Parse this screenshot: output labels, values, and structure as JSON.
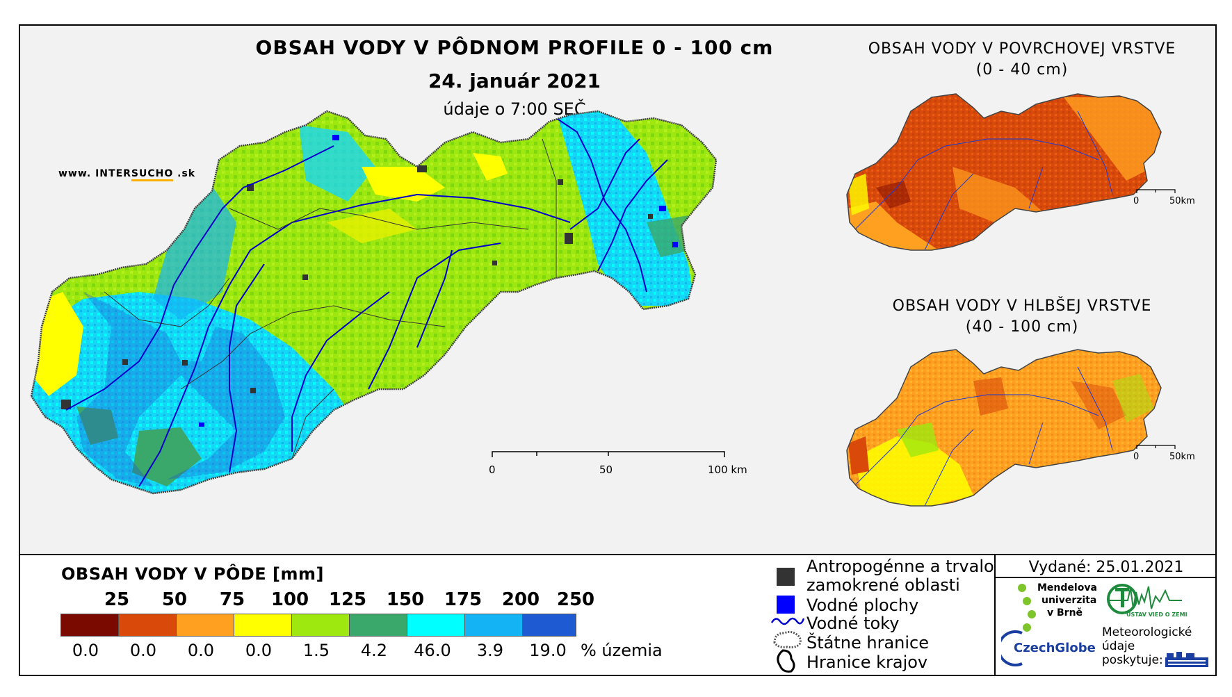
{
  "main_map": {
    "title": "OBSAH VODY V PÔDNOM PROFILE 0 - 100 cm",
    "date": "24. január 2021",
    "time": "údaje o 7:00 SEČ",
    "website_prefix": "www. INTER",
    "website_accent": "SUCHO",
    "website_suffix": " .sk",
    "scale_labels": [
      "0",
      "50",
      "100 km"
    ]
  },
  "surface_map": {
    "title_line1": "OBSAH VODY V POVRCHOVEJ VRSTVE",
    "title_line2": "(0 - 40 cm)",
    "scale_labels": [
      "0",
      "50km"
    ]
  },
  "deep_map": {
    "title_line1": "OBSAH VODY V HLBŠEJ VRSTVE",
    "title_line2": "(40 - 100 cm)",
    "scale_labels": [
      "0",
      "50km"
    ]
  },
  "legend": {
    "title": "OBSAH VODY V PÔDE [mm]",
    "thresholds": [
      "25",
      "50",
      "75",
      "100",
      "125",
      "150",
      "175",
      "200",
      "250"
    ],
    "classes": [
      {
        "color": "#7a0a00",
        "percent": "0.0"
      },
      {
        "color": "#d94a0a",
        "percent": "0.0"
      },
      {
        "color": "#ffa020",
        "percent": "0.0"
      },
      {
        "color": "#ffff00",
        "percent": "0.0"
      },
      {
        "color": "#9ee80f",
        "percent": "1.5"
      },
      {
        "color": "#3aa86a",
        "percent": "4.2"
      },
      {
        "color": "#00ffff",
        "percent": "46.0"
      },
      {
        "color": "#14b4f4",
        "percent": "3.9"
      },
      {
        "color": "#1e5ad2",
        "percent": "19.0"
      }
    ],
    "percent_unit": "% územia"
  },
  "symbols": {
    "anthropogenic_line1": "Antropogénne a trvalo",
    "anthropogenic_line2": "zamokrené oblasti",
    "water_bodies": "Vodné plochy",
    "rivers": "Vodné toky",
    "state_border": "Štátne hranice",
    "region_border": "Hranice krajov",
    "colors": {
      "anthropogenic": "#333333",
      "water": "#0000ff",
      "river": "#0000cc"
    }
  },
  "issued": "Vydané: 25.01.2021",
  "logos": {
    "mendel_line1": "Mendelova",
    "mendel_line2": "univerzita",
    "mendel_line3": "v Brně",
    "czechglobe": "CzechGlobe",
    "uvz": "ÚSTAV VIED O ZEMI",
    "meteo_line1": "Meteorologické",
    "meteo_line2": "údaje",
    "meteo_line3": "poskytuje:"
  }
}
